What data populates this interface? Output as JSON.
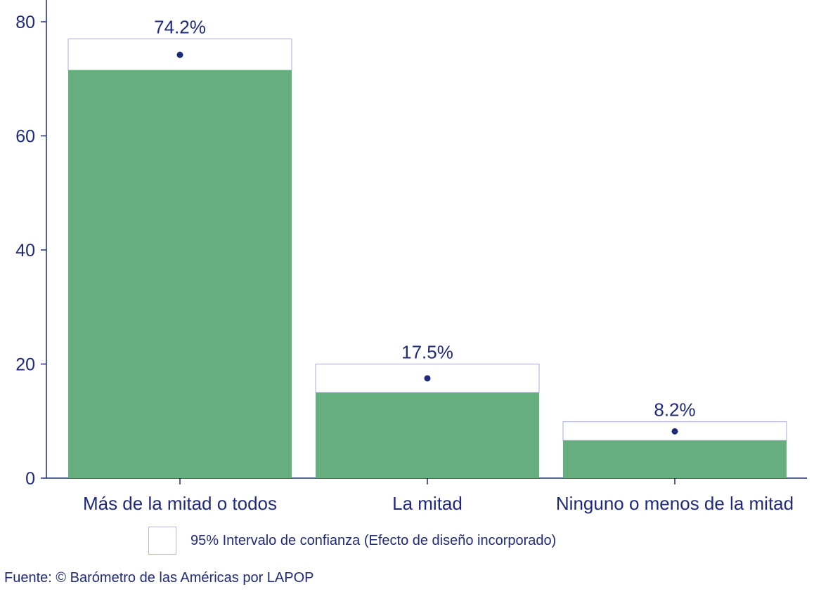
{
  "chart_data": {
    "type": "bar",
    "categories": [
      "Más de la mitad o todos",
      "La mitad",
      "Ninguno o menos de la mitad"
    ],
    "values": [
      74.2,
      17.5,
      8.2
    ],
    "value_labels": [
      "74.2%",
      "17.5%",
      "8.2%"
    ],
    "ci_lower": [
      71.5,
      15.0,
      6.6
    ],
    "ci_upper": [
      77.0,
      20.0,
      9.9
    ],
    "ylim": [
      0,
      80
    ],
    "yticks": [
      0,
      20,
      40,
      60,
      80
    ],
    "title": "",
    "xlabel": "",
    "ylabel": "",
    "grid": false,
    "colors": {
      "bar": "#66b07f",
      "ci_box": "#b6b9dc",
      "point": "#1f2a7a",
      "text": "#1f2a7a"
    },
    "legend": {
      "label": "95% Intervalo de confianza (Efecto de diseño incorporado)",
      "placement": "bottom"
    }
  },
  "source_note": "Fuente: © Barómetro de las Américas por LAPOP"
}
